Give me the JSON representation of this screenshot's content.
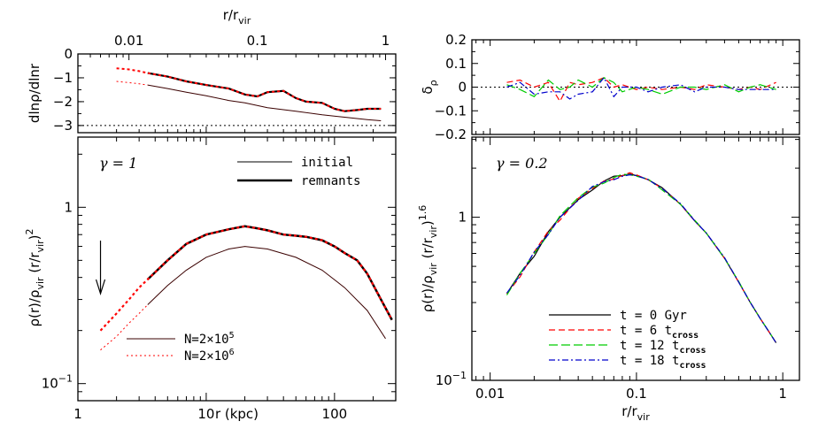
{
  "chart_data": [
    {
      "id": "top-left",
      "type": "line",
      "x_scale": "log",
      "xlim": [
        1,
        300
      ],
      "top_axis": {
        "label": "r/r",
        "label_sub": "vir",
        "ticks": [
          {
            "v": 0.01,
            "t": "0.01"
          },
          {
            "v": 0.1,
            "t": "0.1"
          },
          {
            "v": 1,
            "t": "1"
          }
        ],
        "rvir_kpc": 250
      },
      "ylim": [
        -3.3,
        0
      ],
      "ylabel": "dlnρ/dlnr",
      "yticks": [
        0,
        -1,
        -2,
        -3
      ],
      "ytick_labels": [
        "0",
        "−1",
        "−2",
        "−3"
      ],
      "reference_line": {
        "y": -3,
        "style": "dotted"
      },
      "series": [
        {
          "key": "initial",
          "color": "#3a0000",
          "width": 1,
          "x": [
            3.5,
            5,
            7,
            10,
            15,
            20,
            30,
            50,
            80,
            120,
            180,
            230
          ],
          "y": [
            -1.3,
            -1.45,
            -1.6,
            -1.75,
            -1.95,
            -2.05,
            -2.25,
            -2.4,
            -2.55,
            -2.65,
            -2.75,
            -2.8
          ]
        },
        {
          "key": "remnant-lowN",
          "color": "#000000",
          "width": 2.2,
          "x": [
            3.5,
            5,
            7,
            10,
            15,
            20,
            25,
            30,
            40,
            50,
            60,
            80,
            100,
            120,
            150,
            180,
            230
          ],
          "y": [
            -0.8,
            -0.95,
            -1.15,
            -1.3,
            -1.45,
            -1.7,
            -1.78,
            -1.6,
            -1.55,
            -1.85,
            -2.0,
            -2.05,
            -2.3,
            -2.4,
            -2.35,
            -2.3,
            -2.3
          ]
        },
        {
          "key": "remnant-highN",
          "color": "#ff0000",
          "width": 2,
          "dash": "3,3",
          "x": [
            2,
            2.5,
            3,
            3.5,
            5,
            7,
            10,
            15,
            20,
            25,
            30,
            40,
            50,
            60,
            80,
            100,
            120,
            150,
            180,
            230
          ],
          "y": [
            -0.6,
            -0.65,
            -0.72,
            -0.8,
            -0.95,
            -1.15,
            -1.3,
            -1.45,
            -1.7,
            -1.78,
            -1.6,
            -1.55,
            -1.85,
            -2.0,
            -2.05,
            -2.3,
            -2.4,
            -2.35,
            -2.3,
            -2.3
          ]
        },
        {
          "key": "initial-highN",
          "color": "#ff0000",
          "width": 1,
          "dash": "2,3",
          "x": [
            2,
            2.5,
            3,
            3.5
          ],
          "y": [
            -1.15,
            -1.2,
            -1.25,
            -1.3
          ]
        }
      ]
    },
    {
      "id": "bottom-left",
      "type": "line",
      "x_scale": "log",
      "y_scale": "log",
      "xlim": [
        1,
        300
      ],
      "ylim": [
        0.08,
        2.5
      ],
      "xlabel": "r (kpc)",
      "ylabel": "ρ(r)/ρ",
      "ylabel_sub": "vir",
      "ylabel_tail": "(r/r",
      "ylabel_tail_sub": "vir",
      "ylabel_tail_end": ")",
      "ylabel_sup": "2",
      "xticks": [
        {
          "v": 1,
          "t": "1"
        },
        {
          "v": 10,
          "t": "10"
        },
        {
          "v": 100,
          "t": "100"
        }
      ],
      "yticks": [
        {
          "v": 1,
          "t": "1",
          "sup": ""
        },
        {
          "v": 0.1,
          "t": "10",
          "sup": "−1"
        }
      ],
      "annotation": "γ = 1",
      "legend_top": [
        {
          "label": "initial",
          "width": 1
        },
        {
          "label": "remnants",
          "width": 2.5
        }
      ],
      "legend_bottom": [
        {
          "label": "N=2×10",
          "sup": "5",
          "color": "#3a0000",
          "dash": ""
        },
        {
          "label": "N=2×10",
          "sup": "6",
          "color": "#ff0000",
          "dash": "2,3"
        }
      ],
      "arrow_x": 1.5,
      "series": [
        {
          "key": "initial",
          "color": "#3a0000",
          "width": 1,
          "x": [
            3.5,
            5,
            7,
            10,
            15,
            20,
            30,
            50,
            80,
            120,
            180,
            250
          ],
          "y": [
            0.28,
            0.36,
            0.44,
            0.52,
            0.58,
            0.6,
            0.58,
            0.52,
            0.44,
            0.35,
            0.26,
            0.18
          ]
        },
        {
          "key": "initial-highN",
          "color": "#ff0000",
          "width": 1,
          "dash": "2,3",
          "x": [
            1.5,
            2,
            2.5,
            3,
            3.5
          ],
          "y": [
            0.155,
            0.185,
            0.22,
            0.25,
            0.28
          ]
        },
        {
          "key": "remnant-lowN",
          "color": "#000000",
          "width": 2.5,
          "x": [
            3.5,
            5,
            7,
            10,
            15,
            20,
            25,
            30,
            40,
            50,
            60,
            80,
            100,
            120,
            150,
            180,
            230,
            280
          ],
          "y": [
            0.39,
            0.5,
            0.62,
            0.7,
            0.75,
            0.78,
            0.76,
            0.74,
            0.7,
            0.69,
            0.68,
            0.65,
            0.6,
            0.55,
            0.5,
            0.42,
            0.3,
            0.23
          ]
        },
        {
          "key": "remnant-highN",
          "color": "#ff0000",
          "width": 2.2,
          "dash": "3,3",
          "x": [
            1.5,
            2,
            2.5,
            3,
            3.5,
            5,
            7,
            10,
            15,
            20,
            25,
            30,
            40,
            50,
            60,
            80,
            100,
            120,
            150,
            180,
            230,
            280
          ],
          "y": [
            0.2,
            0.25,
            0.3,
            0.35,
            0.39,
            0.5,
            0.62,
            0.7,
            0.75,
            0.78,
            0.76,
            0.74,
            0.7,
            0.69,
            0.68,
            0.65,
            0.6,
            0.55,
            0.5,
            0.42,
            0.3,
            0.23
          ]
        }
      ]
    },
    {
      "id": "top-right",
      "type": "line",
      "x_scale": "log",
      "xlim": [
        0.0075,
        1.3
      ],
      "ylim": [
        -0.2,
        0.2
      ],
      "ylabel": "δ",
      "ylabel_sub": "ρ",
      "yticks": [
        0.2,
        0.1,
        0,
        -0.1,
        -0.2
      ],
      "ytick_labels": [
        "0.2",
        "0.1",
        "0",
        "−0.1",
        "−0.2"
      ],
      "reference_line": {
        "y": 0,
        "style": "dotted"
      },
      "series": [
        {
          "key": "t6",
          "color": "#ff0000",
          "dash": "7,4",
          "x": [
            0.013,
            0.016,
            0.02,
            0.025,
            0.03,
            0.035,
            0.04,
            0.05,
            0.06,
            0.07,
            0.08,
            0.1,
            0.12,
            0.15,
            0.2,
            0.25,
            0.3,
            0.4,
            0.5,
            0.6,
            0.7,
            0.9
          ],
          "y": [
            0.02,
            0.03,
            0.0,
            0.02,
            -0.06,
            0.02,
            0.01,
            0.02,
            0.04,
            0.0,
            0.01,
            -0.01,
            0.0,
            -0.01,
            0.0,
            -0.01,
            0.01,
            0.0,
            -0.01,
            0.0,
            -0.01,
            0.02
          ]
        },
        {
          "key": "t12",
          "color": "#00cc00",
          "dash": "10,4",
          "x": [
            0.013,
            0.016,
            0.02,
            0.025,
            0.03,
            0.035,
            0.04,
            0.05,
            0.06,
            0.07,
            0.08,
            0.1,
            0.12,
            0.15,
            0.2,
            0.25,
            0.3,
            0.4,
            0.5,
            0.6,
            0.7,
            0.9
          ],
          "y": [
            0.01,
            -0.01,
            -0.04,
            0.03,
            -0.01,
            0.0,
            0.03,
            0.0,
            0.04,
            0.02,
            -0.02,
            0.0,
            -0.01,
            -0.03,
            0.0,
            0.0,
            -0.01,
            0.01,
            -0.02,
            0.0,
            0.01,
            -0.01
          ]
        },
        {
          "key": "t18",
          "color": "#0000cc",
          "dash": "7,3,2,3",
          "x": [
            0.013,
            0.016,
            0.02,
            0.025,
            0.03,
            0.035,
            0.04,
            0.05,
            0.06,
            0.07,
            0.08,
            0.1,
            0.12,
            0.15,
            0.2,
            0.25,
            0.3,
            0.4,
            0.5,
            0.6,
            0.7,
            0.9
          ],
          "y": [
            0.0,
            0.02,
            -0.03,
            -0.02,
            -0.02,
            -0.05,
            -0.03,
            -0.02,
            0.04,
            -0.04,
            0.0,
            0.0,
            -0.02,
            0.0,
            0.01,
            -0.02,
            0.0,
            0.0,
            -0.01,
            -0.01,
            -0.01,
            -0.01
          ]
        }
      ]
    },
    {
      "id": "bottom-right",
      "type": "line",
      "x_scale": "log",
      "y_scale": "log",
      "xlim": [
        0.0075,
        1.3
      ],
      "ylim": [
        0.1,
        3.1
      ],
      "xlabel": "r/r",
      "xlabel_sub": "vir",
      "ylabel": "ρ(r)/ρ",
      "ylabel_sub": "vir",
      "ylabel_tail": "(r/r",
      "ylabel_tail_sub": "vir",
      "ylabel_tail_end": ")",
      "ylabel_sup": "1.6",
      "xticks": [
        {
          "v": 0.01,
          "t": "0.01"
        },
        {
          "v": 0.1,
          "t": "0.1"
        },
        {
          "v": 1,
          "t": "1"
        }
      ],
      "yticks": [
        {
          "v": 1,
          "t": "1",
          "sup": ""
        },
        {
          "v": 0.1,
          "t": "10",
          "sup": "−1"
        }
      ],
      "annotation": "γ = 0.2",
      "legend": [
        {
          "text": "t = 0 Gyr",
          "sub": "",
          "color": "#000000",
          "dash": ""
        },
        {
          "text": "t = 6  t",
          "sub": "cross",
          "color": "#ff0000",
          "dash": "7,4"
        },
        {
          "text": "t = 12 t",
          "sub": "cross",
          "color": "#00cc00",
          "dash": "10,4"
        },
        {
          "text": "t = 18 t",
          "sub": "cross",
          "color": "#0000cc",
          "dash": "7,3,2,3"
        }
      ],
      "curve_x": [
        0.013,
        0.016,
        0.02,
        0.025,
        0.03,
        0.04,
        0.05,
        0.06,
        0.07,
        0.08,
        0.09,
        0.1,
        0.12,
        0.15,
        0.2,
        0.25,
        0.3,
        0.4,
        0.5,
        0.6,
        0.7,
        0.8,
        0.9
      ],
      "curve_y": [
        0.34,
        0.44,
        0.6,
        0.8,
        1.0,
        1.28,
        1.5,
        1.65,
        1.75,
        1.8,
        1.82,
        1.8,
        1.7,
        1.5,
        1.2,
        0.95,
        0.8,
        0.56,
        0.4,
        0.3,
        0.24,
        0.2,
        0.17
      ],
      "series": [
        {
          "key": "t0",
          "color": "#000000",
          "dash": "",
          "scale": [
            0,
            0.03,
            -0.04,
            0.02,
            0,
            0,
            -0.02,
            0.01,
            0.02,
            0,
            0.01,
            0,
            0,
            0.01,
            0,
            0,
            0,
            0,
            0,
            0,
            0,
            0,
            0
          ]
        },
        {
          "key": "t6",
          "color": "#ff0000",
          "dash": "7,4",
          "scale": [
            0,
            -0.02,
            0.02,
            0.03,
            -0.04,
            0.02,
            0,
            0.01,
            -0.02,
            0,
            0.03,
            0.01,
            0,
            0,
            0,
            0,
            0,
            0,
            0,
            0,
            0,
            0,
            0
          ]
        },
        {
          "key": "t12",
          "color": "#00cc00",
          "dash": "10,4",
          "scale": [
            -0.02,
            0.03,
            0,
            -0.02,
            0.02,
            0.03,
            0.02,
            -0.02,
            0,
            0.02,
            0,
            -0.01,
            0.01,
            -0.02,
            0,
            0.01,
            0,
            0,
            0.01,
            0,
            0,
            0,
            0
          ]
        },
        {
          "key": "t18",
          "color": "#0000cc",
          "dash": "7,3,2,3",
          "scale": [
            0.01,
            0,
            0.02,
            -0.02,
            0,
            -0.01,
            0.03,
            0,
            -0.03,
            -0.01,
            0,
            0,
            0,
            0,
            0.01,
            0,
            0,
            0.01,
            0,
            0,
            0,
            0,
            0
          ]
        }
      ]
    }
  ]
}
